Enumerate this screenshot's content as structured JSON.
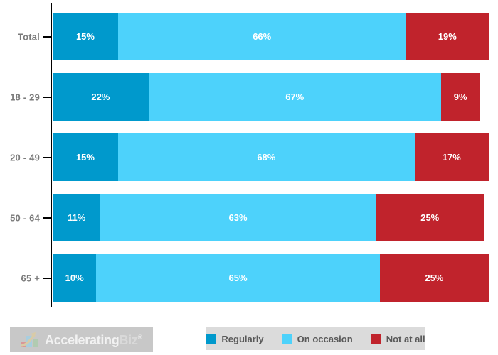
{
  "chart_data": {
    "type": "bar",
    "orientation": "horizontal",
    "stacked": true,
    "title": "",
    "categories": [
      "Total",
      "18 - 29",
      "20 - 49",
      "50 - 64",
      "65 +"
    ],
    "series": [
      {
        "name": "Regularly",
        "values": [
          15,
          22,
          15,
          11,
          10
        ]
      },
      {
        "name": "On occasion",
        "values": [
          66,
          67,
          68,
          63,
          65
        ]
      },
      {
        "name": "Not at all",
        "values": [
          19,
          9,
          17,
          25,
          25
        ]
      }
    ],
    "value_suffix": "%",
    "xlim": [
      0,
      100
    ],
    "grid": false,
    "legend_position": "bottom"
  },
  "colors": {
    "Regularly": "#0099CC",
    "On occasion": "#4DD2FB",
    "Not at all": "#C0232C",
    "category_label": "#7A7A7A",
    "axis": "#000000",
    "bar_value_text": "#FFFFFF",
    "legend_bg": "#DBDBDB",
    "legend_text": "#595959",
    "logo_bg": "#C8C8C8"
  },
  "legend": {
    "items": [
      {
        "label": "Regularly",
        "series": "Regularly"
      },
      {
        "label": "On occasion",
        "series": "On occasion"
      },
      {
        "label": "Not at all",
        "series": "Not at all"
      }
    ]
  },
  "logo": {
    "text_primary": "Accelerating",
    "text_secondary": "Biz",
    "registered_mark": "®"
  }
}
